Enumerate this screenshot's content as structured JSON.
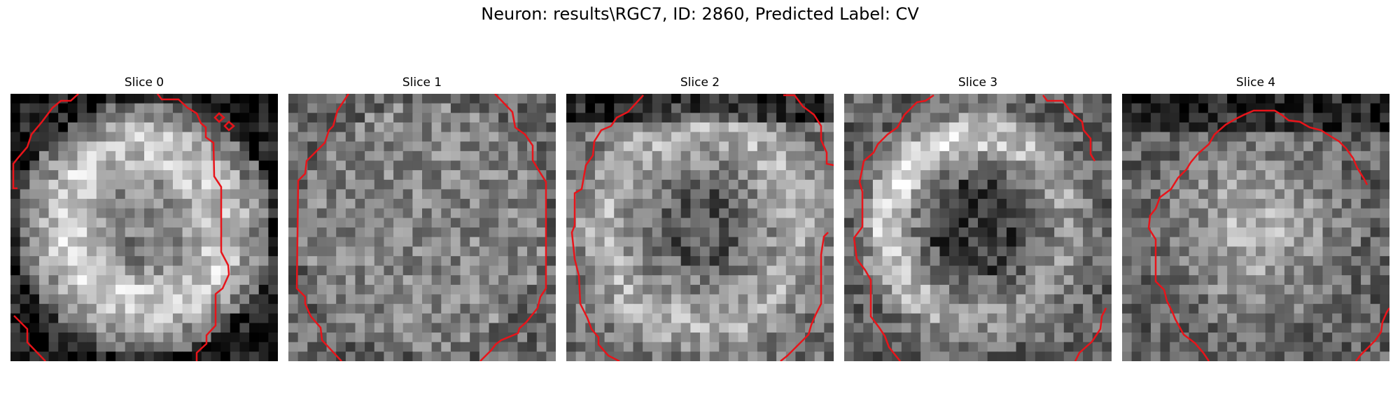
{
  "figure": {
    "title": "Neuron: results\\RGC7, ID: 2860, Predicted Label: CV"
  },
  "panels": [
    {
      "label": "Slice 0",
      "seed": 11,
      "pattern": "ring"
    },
    {
      "label": "Slice 1",
      "seed": 23,
      "pattern": "noise"
    },
    {
      "label": "Slice 2",
      "seed": 37,
      "pattern": "faint-ring"
    },
    {
      "label": "Slice 3",
      "seed": 41,
      "pattern": "bright-arc"
    },
    {
      "label": "Slice 4",
      "seed": 53,
      "pattern": "soft-blob"
    }
  ],
  "colors": {
    "contour": "#e8141a",
    "background": "#ffffff"
  }
}
